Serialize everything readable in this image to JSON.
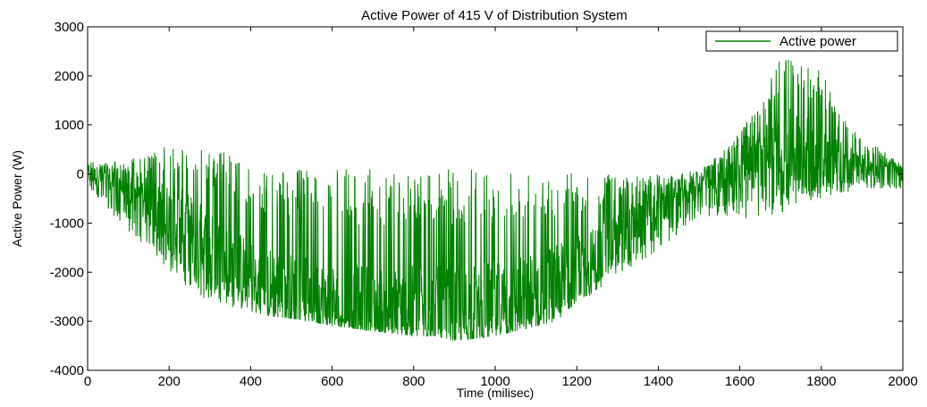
{
  "chart_data": {
    "type": "line",
    "title": "Active Power of 415 V of Distribution System",
    "xlabel": "Time (milisec)",
    "ylabel": "Active Power (W)",
    "xlim": [
      0,
      2000
    ],
    "ylim": [
      -4000,
      3000
    ],
    "xticks": [
      0,
      200,
      400,
      600,
      800,
      1000,
      1200,
      1400,
      1600,
      1800,
      2000
    ],
    "yticks": [
      -4000,
      -3000,
      -2000,
      -1000,
      0,
      1000,
      2000,
      3000
    ],
    "grid": false,
    "legend_position": "top-right",
    "series": [
      {
        "name": "Active power",
        "color": "#008000",
        "x": [
          0,
          50,
          100,
          150,
          200,
          250,
          300,
          350,
          400,
          450,
          500,
          550,
          600,
          650,
          700,
          750,
          800,
          850,
          900,
          950,
          1000,
          1050,
          1100,
          1150,
          1200,
          1250,
          1300,
          1350,
          1400,
          1450,
          1500,
          1550,
          1600,
          1650,
          1700,
          1750,
          1800,
          1850,
          1900,
          1950,
          2000
        ],
        "lower": [
          -300,
          -700,
          -1200,
          -1500,
          -2000,
          -2400,
          -2600,
          -2700,
          -2800,
          -2900,
          -2950,
          -3000,
          -3100,
          -3150,
          -3200,
          -3250,
          -3300,
          -3300,
          -3400,
          -3350,
          -3300,
          -3200,
          -3100,
          -3000,
          -2600,
          -2400,
          -2100,
          -1800,
          -1600,
          -1200,
          -900,
          -900,
          -900,
          -900,
          -800,
          -600,
          -500,
          -400,
          -300,
          -300,
          -300
        ],
        "center": [
          0,
          -100,
          -300,
          -600,
          -900,
          -1200,
          -1600,
          -1900,
          -2100,
          -2300,
          -2450,
          -2550,
          -2650,
          -2700,
          -2750,
          -2800,
          -2800,
          -2800,
          -2800,
          -2750,
          -2700,
          -2600,
          -2450,
          -2250,
          -2000,
          -1700,
          -1300,
          -1000,
          -700,
          -450,
          -200,
          -50,
          150,
          300,
          500,
          450,
          350,
          250,
          150,
          100,
          0
        ],
        "upper": [
          300,
          250,
          300,
          400,
          600,
          600,
          600,
          400,
          100,
          100,
          100,
          100,
          100,
          100,
          100,
          100,
          100,
          100,
          100,
          100,
          100,
          100,
          100,
          100,
          50,
          0,
          0,
          0,
          0,
          0,
          100,
          400,
          900,
          1400,
          2500,
          2300,
          2100,
          1200,
          700,
          500,
          200
        ]
      }
    ]
  }
}
